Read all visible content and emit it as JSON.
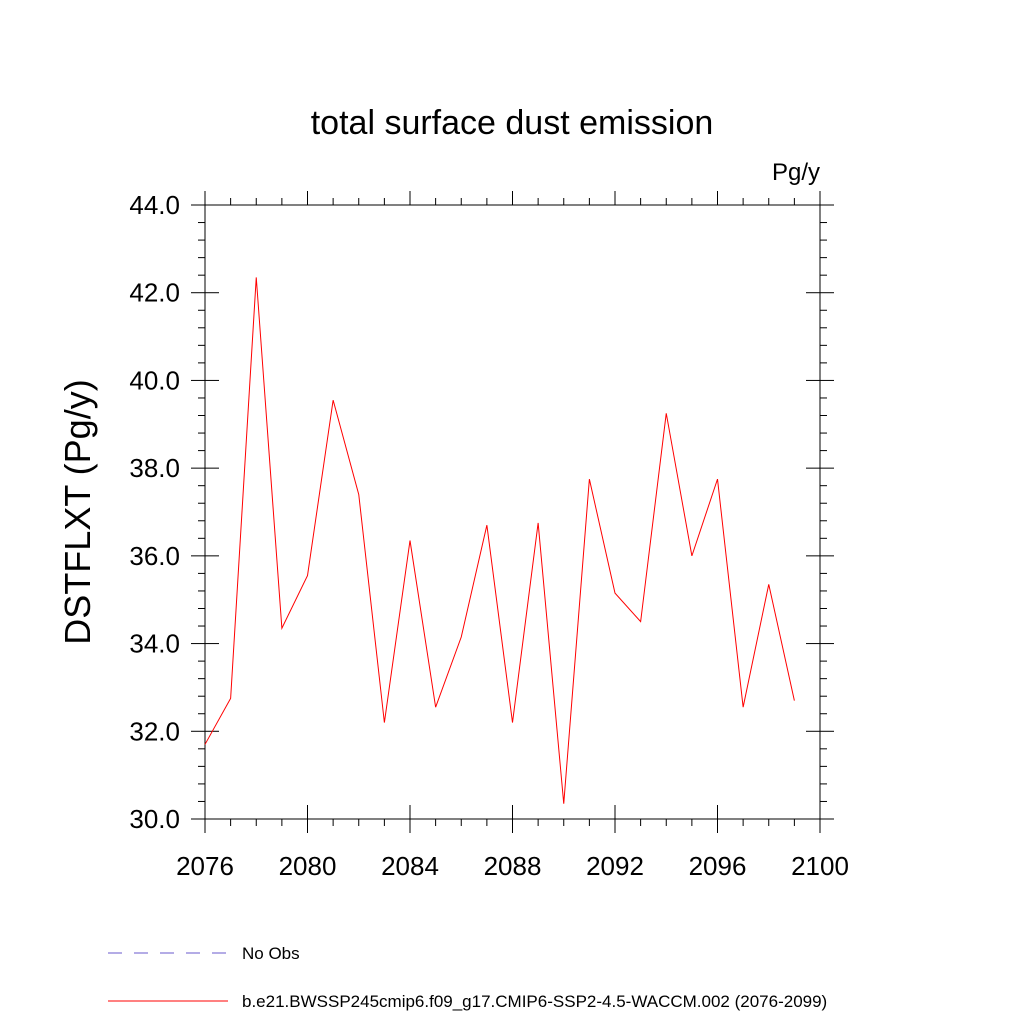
{
  "chart_data": {
    "type": "line",
    "title": "total surface dust emission",
    "units_label": "Pg/y",
    "ylabel": "DSTFLXT  (Pg/y)",
    "xlabel": "",
    "xlim": [
      2076,
      2100
    ],
    "ylim": [
      30.0,
      44.0
    ],
    "x_ticks": [
      2076,
      2080,
      2084,
      2088,
      2092,
      2096,
      2100
    ],
    "y_ticks": [
      "30.0",
      "32.0",
      "34.0",
      "36.0",
      "38.0",
      "40.0",
      "42.0",
      "44.0"
    ],
    "grid": false,
    "series": [
      {
        "name": "b.e21.BWSSP245cmip6.f09_g17.CMIP6-SSP2-4.5-WACCM.002 (2076-2099)",
        "color": "#ff0000",
        "x": [
          2076,
          2077,
          2078,
          2079,
          2080,
          2081,
          2082,
          2083,
          2084,
          2085,
          2086,
          2087,
          2088,
          2089,
          2090,
          2091,
          2092,
          2093,
          2094,
          2095,
          2096,
          2097,
          2098,
          2099
        ],
        "values": [
          31.7,
          32.75,
          42.35,
          34.35,
          35.55,
          39.55,
          37.4,
          32.2,
          36.35,
          32.55,
          34.15,
          36.7,
          32.2,
          36.75,
          30.35,
          37.75,
          35.15,
          34.5,
          39.25,
          36.0,
          37.75,
          32.55,
          35.35,
          32.7
        ]
      }
    ],
    "legend": [
      {
        "label": "No Obs",
        "style": "dashed",
        "color": "#6a5acd"
      },
      {
        "label": "b.e21.BWSSP245cmip6.f09_g17.CMIP6-SSP2-4.5-WACCM.002 (2076-2099)",
        "style": "solid",
        "color": "#ff0000"
      }
    ]
  }
}
